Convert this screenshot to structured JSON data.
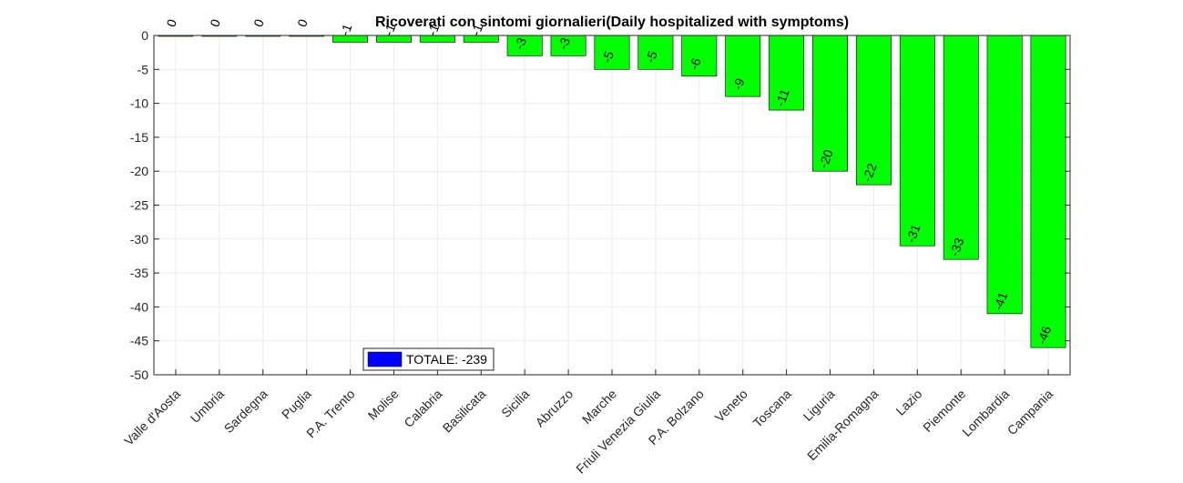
{
  "chart_data": {
    "type": "bar",
    "title": "Ricoverati con sintomi giornalieri(Daily hospitalized with symptoms)",
    "xlabel": "",
    "ylabel": "",
    "ylim": [
      -50,
      0
    ],
    "yticks": [
      0,
      -5,
      -10,
      -15,
      -20,
      -25,
      -30,
      -35,
      -40,
      -45,
      -50
    ],
    "grid": true,
    "categories": [
      "Valle d'Aosta",
      "Umbria",
      "Sardegna",
      "Puglia",
      "P.A. Trento",
      "Molise",
      "Calabria",
      "Basilicata",
      "Sicilia",
      "Abruzzo",
      "Marche",
      "Friuli Venezia Giulia",
      "P.A. Bolzano",
      "Veneto",
      "Toscana",
      "Liguria",
      "Emilia-Romagna",
      "Lazio",
      "Piemonte",
      "Lombardia",
      "Campania"
    ],
    "values": [
      0,
      0,
      0,
      0,
      -1,
      -1,
      -1,
      -1,
      -3,
      -3,
      -5,
      -5,
      -6,
      -9,
      -11,
      -20,
      -22,
      -31,
      -33,
      -41,
      -46
    ],
    "bar_color": "#00ff00",
    "legend": {
      "label": "TOTALE: -239",
      "color": "#0000ff",
      "placement": "bottom-left"
    }
  }
}
